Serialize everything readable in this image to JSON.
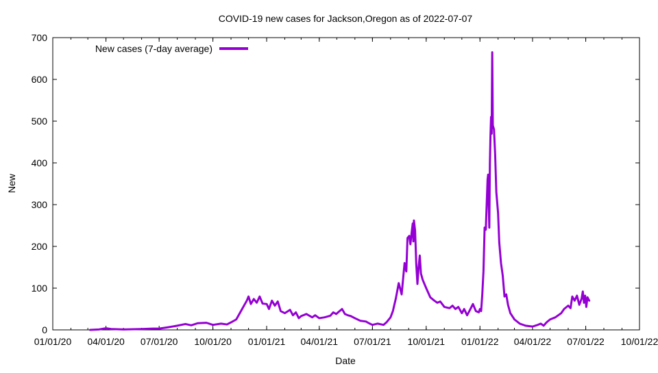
{
  "chart_data": {
    "type": "line",
    "title": "COVID-19 new cases for Jackson,Oregon as of 2022-07-07",
    "xlabel": "Date",
    "ylabel": "New",
    "ylim": [
      0,
      700
    ],
    "xlim": [
      "01/01/20",
      "10/01/22"
    ],
    "x_ticks": [
      "01/01/20",
      "04/01/20",
      "07/01/20",
      "10/01/20",
      "01/01/21",
      "04/01/21",
      "07/01/21",
      "10/01/21",
      "01/01/22",
      "04/01/22",
      "07/01/22",
      "10/01/22"
    ],
    "y_ticks": [
      0,
      100,
      200,
      300,
      400,
      500,
      600,
      700
    ],
    "legend_position": "top-left",
    "series": [
      {
        "name": "New cases (7-day average)",
        "color": "#9400d3",
        "points": [
          [
            "2020-03-05",
            0
          ],
          [
            "2020-03-20",
            1
          ],
          [
            "2020-04-01",
            4
          ],
          [
            "2020-04-10",
            2
          ],
          [
            "2020-05-01",
            1
          ],
          [
            "2020-06-01",
            2
          ],
          [
            "2020-06-20",
            3
          ],
          [
            "2020-07-01",
            3
          ],
          [
            "2020-07-15",
            6
          ],
          [
            "2020-08-01",
            10
          ],
          [
            "2020-08-15",
            14
          ],
          [
            "2020-08-25",
            11
          ],
          [
            "2020-09-05",
            16
          ],
          [
            "2020-09-20",
            17
          ],
          [
            "2020-10-01",
            12
          ],
          [
            "2020-10-15",
            15
          ],
          [
            "2020-10-25",
            13
          ],
          [
            "2020-11-01",
            18
          ],
          [
            "2020-11-10",
            25
          ],
          [
            "2020-11-20",
            50
          ],
          [
            "2020-11-28",
            70
          ],
          [
            "2020-12-01",
            80
          ],
          [
            "2020-12-05",
            62
          ],
          [
            "2020-12-10",
            74
          ],
          [
            "2020-12-15",
            65
          ],
          [
            "2020-12-20",
            80
          ],
          [
            "2020-12-25",
            63
          ],
          [
            "2021-01-01",
            62
          ],
          [
            "2021-01-05",
            50
          ],
          [
            "2021-01-10",
            70
          ],
          [
            "2021-01-15",
            58
          ],
          [
            "2021-01-20",
            68
          ],
          [
            "2021-01-25",
            45
          ],
          [
            "2021-02-01",
            40
          ],
          [
            "2021-02-10",
            48
          ],
          [
            "2021-02-15",
            35
          ],
          [
            "2021-02-20",
            42
          ],
          [
            "2021-02-25",
            28
          ],
          [
            "2021-03-01",
            33
          ],
          [
            "2021-03-10",
            38
          ],
          [
            "2021-03-20",
            30
          ],
          [
            "2021-03-25",
            35
          ],
          [
            "2021-04-01",
            28
          ],
          [
            "2021-04-10",
            30
          ],
          [
            "2021-04-20",
            34
          ],
          [
            "2021-04-25",
            42
          ],
          [
            "2021-04-30",
            38
          ],
          [
            "2021-05-05",
            44
          ],
          [
            "2021-05-10",
            50
          ],
          [
            "2021-05-15",
            38
          ],
          [
            "2021-05-20",
            35
          ],
          [
            "2021-05-25",
            33
          ],
          [
            "2021-06-01",
            28
          ],
          [
            "2021-06-10",
            22
          ],
          [
            "2021-06-20",
            20
          ],
          [
            "2021-06-25",
            16
          ],
          [
            "2021-07-01",
            12
          ],
          [
            "2021-07-10",
            15
          ],
          [
            "2021-07-20",
            12
          ],
          [
            "2021-07-25",
            18
          ],
          [
            "2021-08-01",
            30
          ],
          [
            "2021-08-05",
            45
          ],
          [
            "2021-08-10",
            75
          ],
          [
            "2021-08-15",
            112
          ],
          [
            "2021-08-20",
            85
          ],
          [
            "2021-08-25",
            160
          ],
          [
            "2021-08-28",
            140
          ],
          [
            "2021-08-30",
            220
          ],
          [
            "2021-09-02",
            225
          ],
          [
            "2021-09-04",
            205
          ],
          [
            "2021-09-06",
            232
          ],
          [
            "2021-09-08",
            255
          ],
          [
            "2021-09-09",
            212
          ],
          [
            "2021-09-10",
            262
          ],
          [
            "2021-09-12",
            238
          ],
          [
            "2021-09-14",
            158
          ],
          [
            "2021-09-16",
            110
          ],
          [
            "2021-09-18",
            150
          ],
          [
            "2021-09-20",
            178
          ],
          [
            "2021-09-22",
            135
          ],
          [
            "2021-09-25",
            120
          ],
          [
            "2021-10-01",
            100
          ],
          [
            "2021-10-08",
            78
          ],
          [
            "2021-10-15",
            70
          ],
          [
            "2021-10-20",
            65
          ],
          [
            "2021-10-25",
            68
          ],
          [
            "2021-11-01",
            55
          ],
          [
            "2021-11-10",
            52
          ],
          [
            "2021-11-15",
            58
          ],
          [
            "2021-11-20",
            50
          ],
          [
            "2021-11-25",
            55
          ],
          [
            "2021-12-01",
            40
          ],
          [
            "2021-12-05",
            50
          ],
          [
            "2021-12-10",
            35
          ],
          [
            "2021-12-15",
            48
          ],
          [
            "2021-12-20",
            62
          ],
          [
            "2021-12-25",
            45
          ],
          [
            "2021-12-30",
            42
          ],
          [
            "2022-01-01",
            50
          ],
          [
            "2022-01-03",
            45
          ],
          [
            "2022-01-05",
            85
          ],
          [
            "2022-01-07",
            140
          ],
          [
            "2022-01-09",
            245
          ],
          [
            "2022-01-11",
            240
          ],
          [
            "2022-01-13",
            320
          ],
          [
            "2022-01-14",
            360
          ],
          [
            "2022-01-15",
            372
          ],
          [
            "2022-01-16",
            300
          ],
          [
            "2022-01-17",
            245
          ],
          [
            "2022-01-18",
            400
          ],
          [
            "2022-01-19",
            465
          ],
          [
            "2022-01-20",
            510
          ],
          [
            "2022-01-21",
            470
          ],
          [
            "2022-01-22",
            665
          ],
          [
            "2022-01-23",
            490
          ],
          [
            "2022-01-25",
            480
          ],
          [
            "2022-01-27",
            420
          ],
          [
            "2022-01-29",
            330
          ],
          [
            "2022-02-01",
            280
          ],
          [
            "2022-02-03",
            210
          ],
          [
            "2022-02-06",
            160
          ],
          [
            "2022-02-09",
            130
          ],
          [
            "2022-02-12",
            80
          ],
          [
            "2022-02-15",
            85
          ],
          [
            "2022-02-18",
            60
          ],
          [
            "2022-02-22",
            40
          ],
          [
            "2022-03-01",
            25
          ],
          [
            "2022-03-10",
            15
          ],
          [
            "2022-03-20",
            10
          ],
          [
            "2022-04-01",
            8
          ],
          [
            "2022-04-10",
            12
          ],
          [
            "2022-04-15",
            15
          ],
          [
            "2022-04-20",
            10
          ],
          [
            "2022-04-25",
            18
          ],
          [
            "2022-05-01",
            25
          ],
          [
            "2022-05-10",
            30
          ],
          [
            "2022-05-20",
            40
          ],
          [
            "2022-05-25",
            50
          ],
          [
            "2022-06-01",
            58
          ],
          [
            "2022-06-05",
            52
          ],
          [
            "2022-06-08",
            80
          ],
          [
            "2022-06-12",
            70
          ],
          [
            "2022-06-16",
            82
          ],
          [
            "2022-06-20",
            60
          ],
          [
            "2022-06-24",
            75
          ],
          [
            "2022-06-26",
            92
          ],
          [
            "2022-06-28",
            65
          ],
          [
            "2022-06-30",
            82
          ],
          [
            "2022-07-02",
            55
          ],
          [
            "2022-07-04",
            78
          ],
          [
            "2022-07-07",
            70
          ]
        ]
      }
    ]
  }
}
